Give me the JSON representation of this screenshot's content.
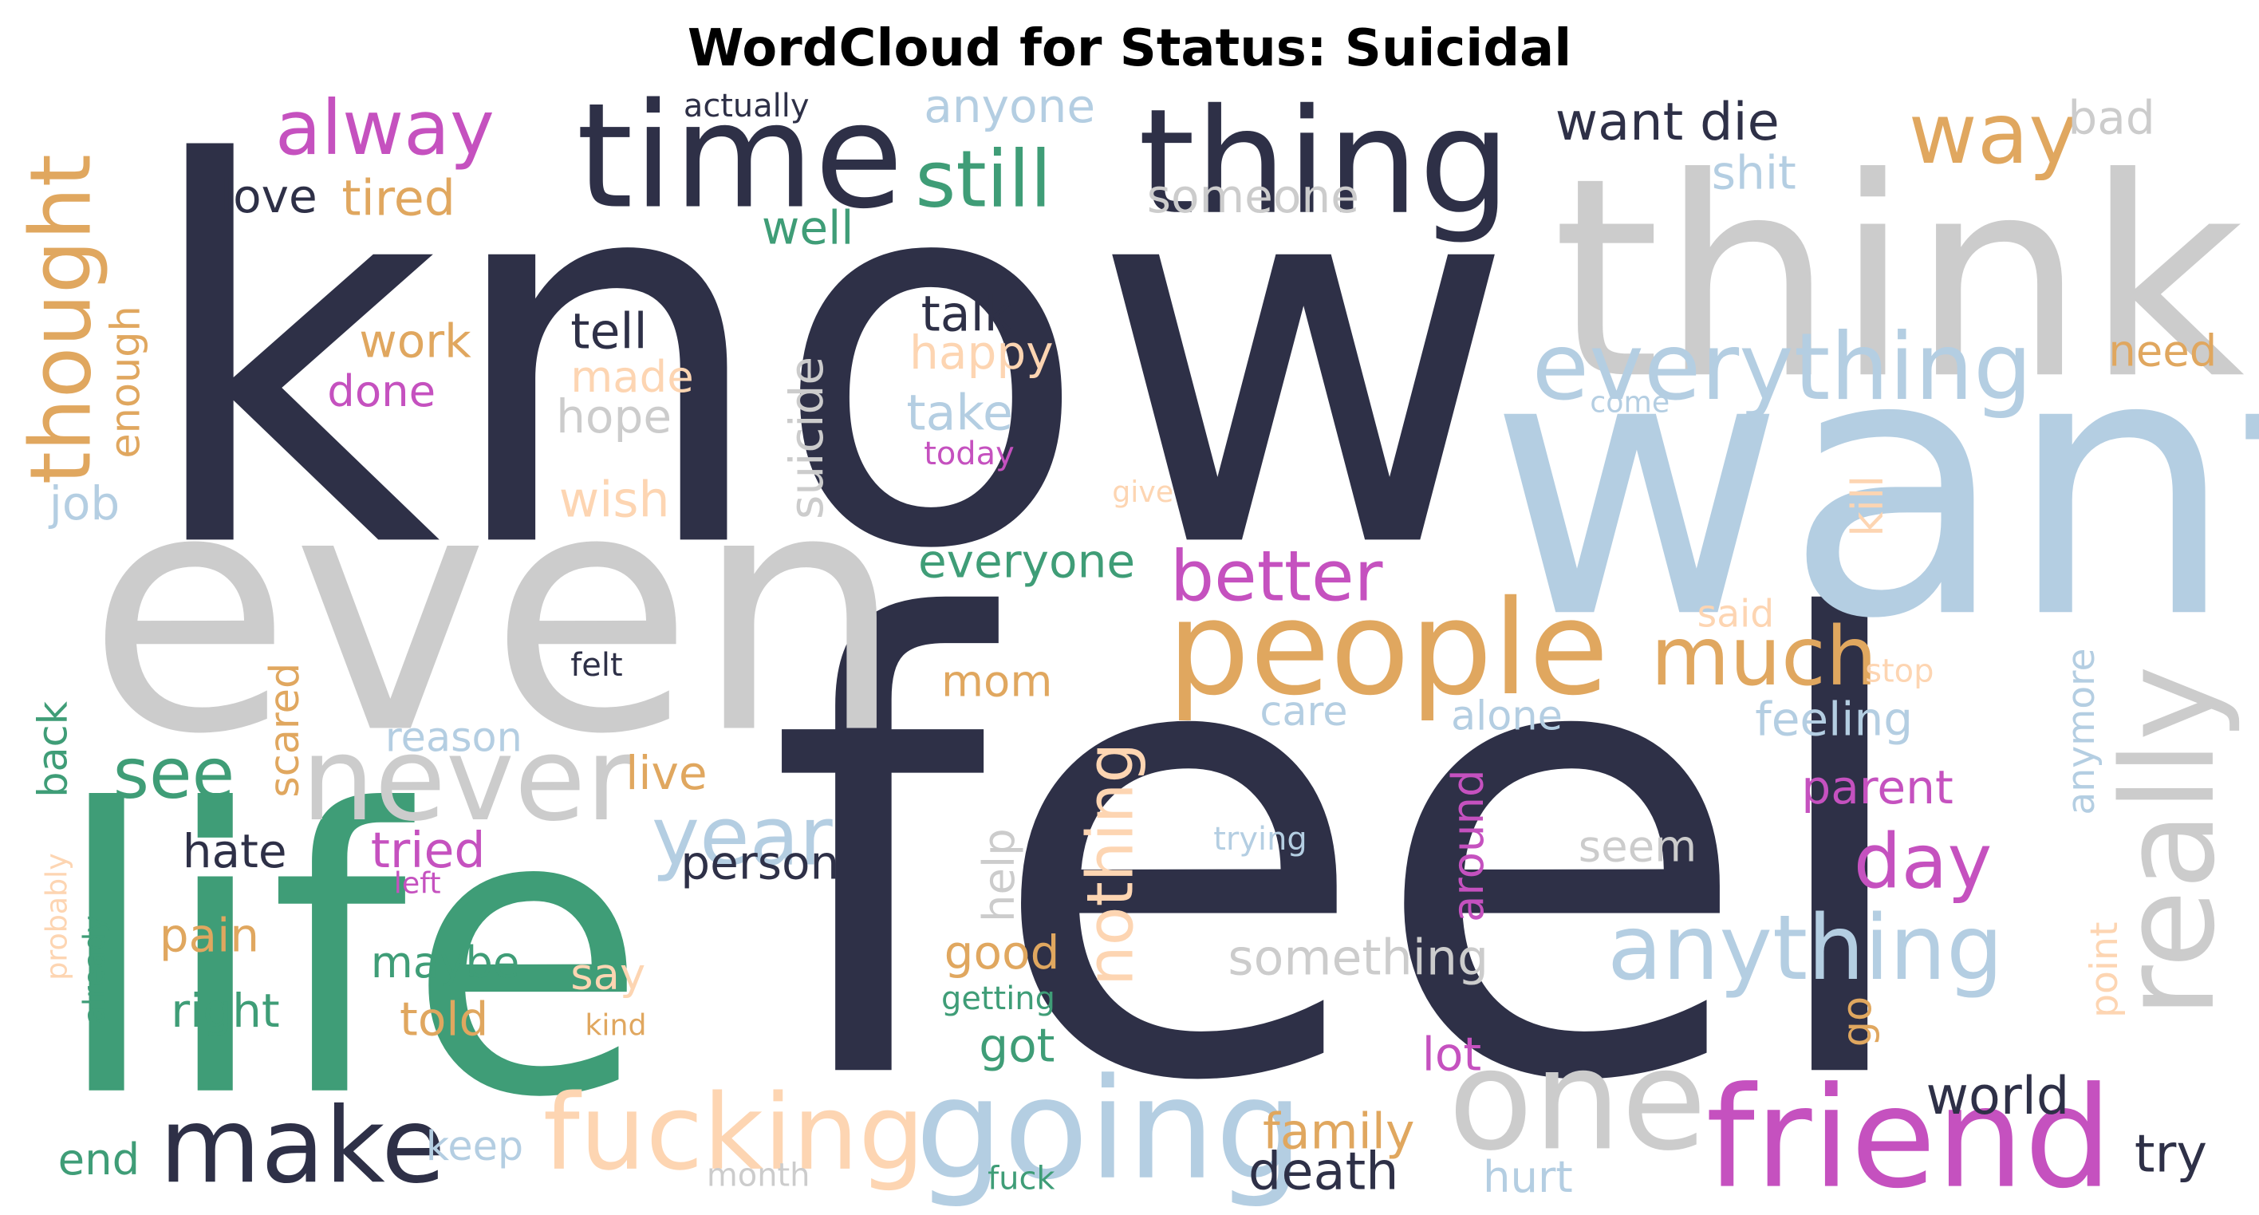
{
  "title": "WordCloud for Status: Suicidal",
  "palette": {
    "navy": "#2e3047",
    "gray": "#cccccc",
    "blue": "#b4cee2",
    "green": "#3f9d77",
    "orange": "#e0a75f",
    "magenta": "#c551bf",
    "peach": "#fdd5b2"
  },
  "words": [
    {
      "text": "know",
      "color": "navy"
    },
    {
      "text": "feel",
      "color": "navy"
    },
    {
      "text": "want",
      "color": "blue"
    },
    {
      "text": "think",
      "color": "gray"
    },
    {
      "text": "even",
      "color": "gray"
    },
    {
      "text": "life",
      "color": "green"
    },
    {
      "text": "thing",
      "color": "navy"
    },
    {
      "text": "time",
      "color": "navy"
    },
    {
      "text": "people",
      "color": "orange"
    },
    {
      "text": "friend",
      "color": "magenta"
    },
    {
      "text": "one",
      "color": "gray"
    },
    {
      "text": "going",
      "color": "blue"
    },
    {
      "text": "really",
      "color": "gray"
    },
    {
      "text": "make",
      "color": "navy"
    },
    {
      "text": "never",
      "color": "gray"
    },
    {
      "text": "everything",
      "color": "blue"
    },
    {
      "text": "anything",
      "color": "blue"
    },
    {
      "text": "fucking",
      "color": "peach"
    },
    {
      "text": "alway",
      "color": "magenta"
    },
    {
      "text": "way",
      "color": "orange"
    },
    {
      "text": "still",
      "color": "green"
    },
    {
      "text": "thought",
      "color": "orange"
    },
    {
      "text": "much",
      "color": "orange"
    },
    {
      "text": "year",
      "color": "blue"
    },
    {
      "text": "better",
      "color": "magenta"
    },
    {
      "text": "day",
      "color": "magenta"
    },
    {
      "text": "see",
      "color": "green"
    },
    {
      "text": "nothing",
      "color": "peach"
    },
    {
      "text": "want die",
      "color": "navy"
    },
    {
      "text": "everyone",
      "color": "green"
    },
    {
      "text": "something",
      "color": "gray"
    },
    {
      "text": "world",
      "color": "navy"
    },
    {
      "text": "death",
      "color": "navy"
    },
    {
      "text": "family",
      "color": "orange"
    },
    {
      "text": "try",
      "color": "navy"
    },
    {
      "text": "bad",
      "color": "gray"
    },
    {
      "text": "anyone",
      "color": "blue"
    },
    {
      "text": "shit",
      "color": "blue"
    },
    {
      "text": "someone",
      "color": "gray"
    },
    {
      "text": "love",
      "color": "navy"
    },
    {
      "text": "tired",
      "color": "orange"
    },
    {
      "text": "well",
      "color": "green"
    },
    {
      "text": "tell",
      "color": "navy"
    },
    {
      "text": "talk",
      "color": "navy"
    },
    {
      "text": "happy",
      "color": "peach"
    },
    {
      "text": "work",
      "color": "orange"
    },
    {
      "text": "done",
      "color": "magenta"
    },
    {
      "text": "made",
      "color": "peach"
    },
    {
      "text": "hope",
      "color": "gray"
    },
    {
      "text": "suicide",
      "color": "gray"
    },
    {
      "text": "take",
      "color": "blue"
    },
    {
      "text": "today",
      "color": "magenta"
    },
    {
      "text": "enough",
      "color": "orange"
    },
    {
      "text": "job",
      "color": "blue"
    },
    {
      "text": "wish",
      "color": "peach"
    },
    {
      "text": "give",
      "color": "peach"
    },
    {
      "text": "need",
      "color": "orange"
    },
    {
      "text": "come",
      "color": "blue"
    },
    {
      "text": "kill",
      "color": "peach"
    },
    {
      "text": "said",
      "color": "peach"
    },
    {
      "text": "stop",
      "color": "peach"
    },
    {
      "text": "anymore",
      "color": "blue"
    },
    {
      "text": "felt",
      "color": "navy"
    },
    {
      "text": "mom",
      "color": "orange"
    },
    {
      "text": "care",
      "color": "blue"
    },
    {
      "text": "alone",
      "color": "blue"
    },
    {
      "text": "feeling",
      "color": "blue"
    },
    {
      "text": "parent",
      "color": "magenta"
    },
    {
      "text": "reason",
      "color": "blue"
    },
    {
      "text": "live",
      "color": "orange"
    },
    {
      "text": "back",
      "color": "green"
    },
    {
      "text": "scared",
      "color": "orange"
    },
    {
      "text": "hate",
      "color": "navy"
    },
    {
      "text": "tried",
      "color": "magenta"
    },
    {
      "text": "left",
      "color": "magenta"
    },
    {
      "text": "person",
      "color": "navy"
    },
    {
      "text": "help",
      "color": "gray"
    },
    {
      "text": "around",
      "color": "magenta"
    },
    {
      "text": "trying",
      "color": "blue"
    },
    {
      "text": "seem",
      "color": "gray"
    },
    {
      "text": "point",
      "color": "peach"
    },
    {
      "text": "probably",
      "color": "peach"
    },
    {
      "text": "already",
      "color": "green"
    },
    {
      "text": "pain",
      "color": "orange"
    },
    {
      "text": "maybe",
      "color": "green"
    },
    {
      "text": "right",
      "color": "green"
    },
    {
      "text": "say",
      "color": "peach"
    },
    {
      "text": "told",
      "color": "orange"
    },
    {
      "text": "kind",
      "color": "orange"
    },
    {
      "text": "good",
      "color": "orange"
    },
    {
      "text": "getting",
      "color": "green"
    },
    {
      "text": "got",
      "color": "green"
    },
    {
      "text": "lot",
      "color": "magenta"
    },
    {
      "text": "go",
      "color": "orange"
    },
    {
      "text": "end",
      "color": "green"
    },
    {
      "text": "keep",
      "color": "blue"
    },
    {
      "text": "month",
      "color": "gray"
    },
    {
      "text": "fuck",
      "color": "green"
    },
    {
      "text": "hurt",
      "color": "blue"
    },
    {
      "text": "actually",
      "color": "navy"
    }
  ]
}
